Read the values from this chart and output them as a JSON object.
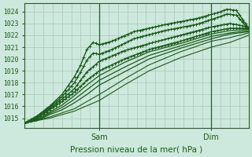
{
  "title": "Pression niveau de la mer( hPa )",
  "ylabel_vals": [
    1015,
    1016,
    1017,
    1018,
    1019,
    1020,
    1021,
    1022,
    1023,
    1024
  ],
  "ylim": [
    1014.2,
    1024.7
  ],
  "xlim": [
    0,
    72
  ],
  "bg_color": "#cde8dc",
  "grid_color": "#a8c8b8",
  "line_color": "#1a5c1a",
  "axis_color": "#2a5a2a",
  "text_color": "#1a5a1a",
  "sam_x": 24,
  "dim_x": 60,
  "n_steps": 145,
  "series": [
    {
      "xs": [
        0,
        4,
        8,
        12,
        16,
        18,
        20,
        22,
        24,
        28,
        35,
        45,
        55,
        62,
        65,
        68,
        72
      ],
      "ys": [
        1014.6,
        1015.2,
        1016.0,
        1017.0,
        1018.5,
        1019.5,
        1020.8,
        1021.4,
        1021.2,
        1021.5,
        1022.3,
        1022.9,
        1023.4,
        1023.9,
        1024.2,
        1024.1,
        1022.6
      ],
      "marker": true,
      "lw": 1.0
    },
    {
      "xs": [
        0,
        4,
        8,
        12,
        16,
        18,
        20,
        22,
        24,
        28,
        35,
        45,
        55,
        62,
        65,
        68,
        72
      ],
      "ys": [
        1014.6,
        1015.1,
        1015.9,
        1016.8,
        1018.0,
        1018.9,
        1019.9,
        1020.5,
        1020.4,
        1020.8,
        1021.7,
        1022.4,
        1022.9,
        1023.5,
        1023.8,
        1023.7,
        1022.5
      ],
      "marker": true,
      "lw": 1.0
    },
    {
      "xs": [
        0,
        4,
        8,
        12,
        16,
        18,
        20,
        24,
        32,
        40,
        50,
        60,
        66,
        72
      ],
      "ys": [
        1014.6,
        1015.0,
        1015.8,
        1016.6,
        1017.5,
        1018.2,
        1018.9,
        1019.8,
        1020.7,
        1021.3,
        1022.0,
        1022.7,
        1023.0,
        1022.7
      ],
      "marker": true,
      "lw": 1.0
    },
    {
      "xs": [
        0,
        4,
        8,
        12,
        16,
        20,
        24,
        32,
        40,
        50,
        60,
        66,
        72
      ],
      "ys": [
        1014.6,
        1015.0,
        1015.7,
        1016.4,
        1017.2,
        1018.2,
        1019.0,
        1020.0,
        1020.8,
        1021.5,
        1022.3,
        1022.6,
        1022.6
      ],
      "marker": true,
      "lw": 1.0
    },
    {
      "xs": [
        0,
        4,
        8,
        12,
        16,
        20,
        24,
        32,
        40,
        50,
        60,
        66,
        72
      ],
      "ys": [
        1014.6,
        1014.9,
        1015.5,
        1016.1,
        1016.9,
        1017.8,
        1018.6,
        1019.7,
        1020.6,
        1021.3,
        1022.1,
        1022.4,
        1022.5
      ],
      "marker": false,
      "lw": 0.9
    },
    {
      "xs": [
        0,
        4,
        8,
        12,
        16,
        20,
        24,
        32,
        40,
        50,
        60,
        66,
        72
      ],
      "ys": [
        1014.6,
        1014.8,
        1015.4,
        1015.9,
        1016.6,
        1017.4,
        1018.2,
        1019.3,
        1020.3,
        1021.1,
        1021.9,
        1022.2,
        1022.4
      ],
      "marker": false,
      "lw": 0.9
    },
    {
      "xs": [
        0,
        4,
        8,
        12,
        16,
        20,
        24,
        32,
        40,
        50,
        60,
        66,
        72
      ],
      "ys": [
        1014.6,
        1014.8,
        1015.3,
        1015.7,
        1016.3,
        1017.0,
        1017.8,
        1018.9,
        1020.0,
        1020.9,
        1021.7,
        1022.1,
        1022.3
      ],
      "marker": false,
      "lw": 0.9
    },
    {
      "xs": [
        0,
        8,
        16,
        24,
        32,
        40,
        50,
        60,
        66,
        72
      ],
      "ys": [
        1014.6,
        1015.1,
        1015.8,
        1017.0,
        1018.3,
        1019.5,
        1020.6,
        1021.5,
        1021.8,
        1022.2
      ],
      "marker": false,
      "lw": 0.8
    },
    {
      "xs": [
        0,
        8,
        16,
        24,
        32,
        40,
        50,
        60,
        66,
        72
      ],
      "ys": [
        1014.6,
        1015.0,
        1015.6,
        1016.5,
        1017.8,
        1019.0,
        1020.1,
        1021.0,
        1021.4,
        1022.0
      ],
      "marker": false,
      "lw": 0.8
    }
  ]
}
